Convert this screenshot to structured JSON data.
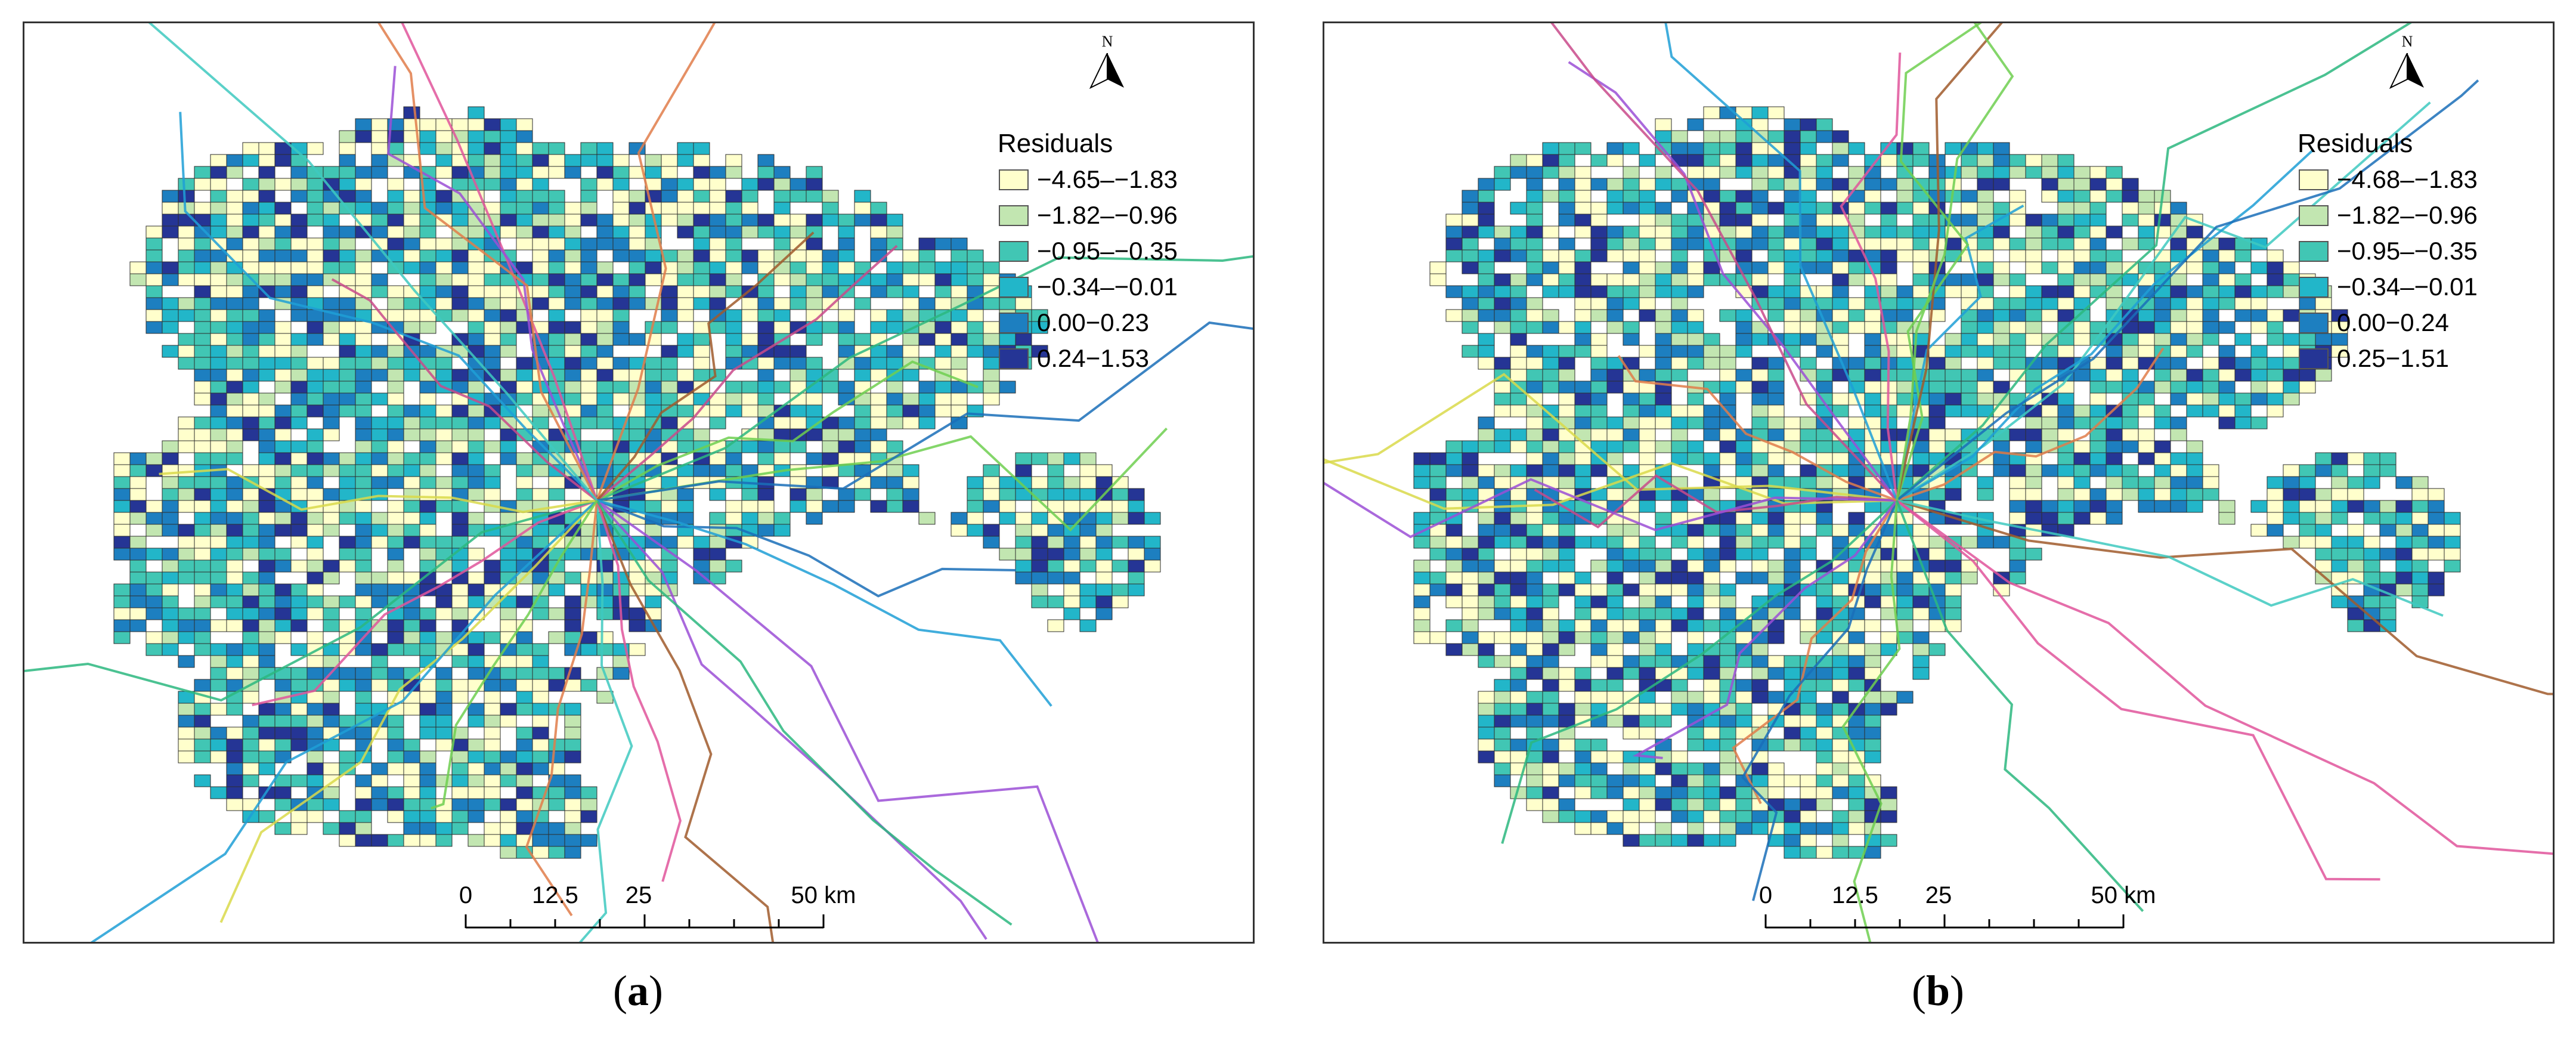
{
  "panels": [
    {
      "caption_letter": "a",
      "north_label": "N",
      "legend": {
        "title": "Residuals",
        "items": [
          {
            "label": "−4.65–−1.83",
            "color": "#ffffcc"
          },
          {
            "label": "−1.82–−0.96",
            "color": "#c2e6b1"
          },
          {
            "label": "−0.95–−0.35",
            "color": "#41c6b4"
          },
          {
            "label": "−0.34–−0.01",
            "color": "#22b6c9"
          },
          {
            "label": "0.00−0.23",
            "color": "#1d7fc0"
          },
          {
            "label": "0.24−1.53",
            "color": "#253595"
          }
        ]
      },
      "scale": {
        "ticks": [
          "0",
          "12.5",
          "25",
          "50 km"
        ]
      }
    },
    {
      "caption_letter": "b",
      "north_label": "N",
      "legend": {
        "title": "Residuals",
        "items": [
          {
            "label": "−4.68–−1.83",
            "color": "#ffffcc"
          },
          {
            "label": "−1.82–−0.96",
            "color": "#c2e6b1"
          },
          {
            "label": "−0.95–−0.35",
            "color": "#41c6b4"
          },
          {
            "label": "−0.34–−0.01",
            "color": "#22b6c9"
          },
          {
            "label": "0.00−0.24",
            "color": "#1d7fc0"
          },
          {
            "label": "0.25−1.51",
            "color": "#253595"
          }
        ]
      },
      "scale": {
        "ticks": [
          "0",
          "12.5",
          "25",
          "50 km"
        ]
      }
    }
  ]
}
